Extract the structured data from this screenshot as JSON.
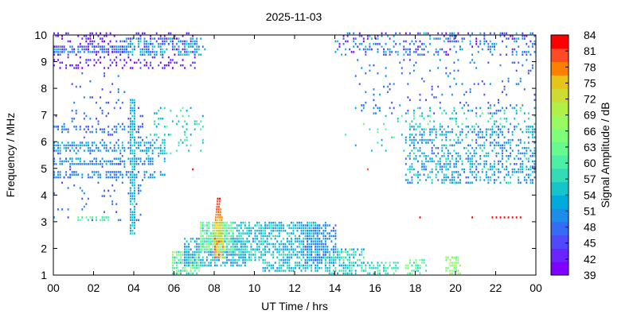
{
  "chart_data": {
    "type": "heatmap",
    "title": "2025-11-03",
    "xlabel": "UT Time / hrs",
    "ylabel": "Frequency / MHz",
    "xlim": [
      0,
      24
    ],
    "ylim": [
      1,
      10
    ],
    "x_ticks": [
      "00",
      "02",
      "04",
      "06",
      "08",
      "10",
      "12",
      "14",
      "16",
      "18",
      "20",
      "22",
      "00"
    ],
    "y_ticks": [
      "1",
      "2",
      "3",
      "4",
      "5",
      "6",
      "7",
      "8",
      "9",
      "10"
    ],
    "colorbar": {
      "label": "Signal Amplitude / dB",
      "range": [
        39,
        84
      ],
      "ticks": [
        "84",
        "81",
        "78",
        "75",
        "72",
        "69",
        "66",
        "63",
        "60",
        "57",
        "54",
        "51",
        "48",
        "45",
        "42",
        "39"
      ],
      "colors": [
        "#8000ff",
        "#6a24fe",
        "#4f49fa",
        "#366cf3",
        "#1d8de9",
        "#00abdb",
        "#16c4cb",
        "#33dbb8",
        "#4cefa4",
        "#66fb8f",
        "#80ff78",
        "#99fb61",
        "#b3ef49",
        "#cddb32",
        "#e6c41a",
        "#ff8000",
        "#ff4a26",
        "#ff0000"
      ]
    },
    "regions": [
      {
        "x": [
          0.0,
          3.7
        ],
        "y": [
          9.3,
          9.6
        ],
        "amp": [
          45,
          54
        ],
        "density": 0.7
      },
      {
        "x": [
          0.0,
          7.0
        ],
        "y": [
          8.7,
          10.0
        ],
        "amp": [
          39,
          46
        ],
        "density": 0.25
      },
      {
        "x": [
          3.4,
          7.5
        ],
        "y": [
          9.2,
          9.8
        ],
        "amp": [
          48,
          57
        ],
        "density": 0.45
      },
      {
        "x": [
          0.0,
          5.0
        ],
        "y": [
          5.6,
          5.9
        ],
        "amp": [
          48,
          55
        ],
        "density": 0.6
      },
      {
        "x": [
          0.0,
          5.0
        ],
        "y": [
          5.1,
          5.3
        ],
        "amp": [
          47,
          54
        ],
        "density": 0.6
      },
      {
        "x": [
          0.0,
          5.5
        ],
        "y": [
          4.6,
          4.8
        ],
        "amp": [
          47,
          52
        ],
        "density": 0.5
      },
      {
        "x": [
          0.0,
          4.5
        ],
        "y": [
          6.3,
          6.5
        ],
        "amp": [
          46,
          52
        ],
        "density": 0.35
      },
      {
        "x": [
          0.0,
          4.5
        ],
        "y": [
          3.0,
          8.5
        ],
        "amp": [
          45,
          50
        ],
        "density": 0.07
      },
      {
        "x": [
          3.8,
          4.1
        ],
        "y": [
          2.5,
          7.5
        ],
        "amp": [
          50,
          58
        ],
        "density": 0.85
      },
      {
        "x": [
          5.0,
          7.5
        ],
        "y": [
          5.5,
          7.2
        ],
        "amp": [
          52,
          62
        ],
        "density": 0.15
      },
      {
        "x": [
          1.2,
          2.8
        ],
        "y": [
          3.0,
          3.2
        ],
        "amp": [
          58,
          64
        ],
        "density": 0.6
      },
      {
        "x": [
          4.6,
          5.5
        ],
        "y": [
          5.2,
          6.2
        ],
        "amp": [
          50,
          58
        ],
        "density": 0.3
      },
      {
        "x": [
          5.9,
          7.2
        ],
        "y": [
          1.0,
          1.9
        ],
        "amp": [
          54,
          70
        ],
        "density": 0.75
      },
      {
        "x": [
          6.5,
          9.5
        ],
        "y": [
          1.3,
          2.4
        ],
        "amp": [
          48,
          58
        ],
        "density": 0.7
      },
      {
        "x": [
          7.3,
          8.9
        ],
        "y": [
          1.9,
          3.0
        ],
        "amp": [
          56,
          68
        ],
        "density": 0.8
      },
      {
        "x": [
          8.9,
          10.5
        ],
        "y": [
          1.5,
          3.0
        ],
        "amp": [
          50,
          60
        ],
        "density": 0.6
      },
      {
        "x": [
          10.4,
          13.5
        ],
        "y": [
          1.1,
          3.0
        ],
        "amp": [
          49,
          58
        ],
        "density": 0.65
      },
      {
        "x": [
          12.5,
          14.0
        ],
        "y": [
          1.4,
          2.9
        ],
        "amp": [
          46,
          52
        ],
        "density": 0.55
      },
      {
        "x": [
          13.5,
          15.5
        ],
        "y": [
          1.0,
          2.0
        ],
        "amp": [
          50,
          62
        ],
        "density": 0.6
      },
      {
        "x": [
          15.5,
          17.2
        ],
        "y": [
          1.0,
          1.5
        ],
        "amp": [
          54,
          62
        ],
        "density": 0.5
      },
      {
        "x": [
          17.4,
          18.6
        ],
        "y": [
          1.0,
          1.6
        ],
        "amp": [
          56,
          68
        ],
        "density": 0.5
      },
      {
        "x": [
          19.5,
          20.3
        ],
        "y": [
          1.0,
          1.7
        ],
        "amp": [
          60,
          72
        ],
        "density": 0.6
      },
      {
        "x": [
          14.0,
          24.0
        ],
        "y": [
          9.2,
          10.0
        ],
        "amp": [
          40,
          56
        ],
        "density": 0.3
      },
      {
        "x": [
          15.0,
          24.0
        ],
        "y": [
          7.0,
          9.0
        ],
        "amp": [
          44,
          52
        ],
        "density": 0.1
      },
      {
        "x": [
          17.5,
          24.0
        ],
        "y": [
          4.4,
          6.5
        ],
        "amp": [
          46,
          58
        ],
        "density": 0.4
      },
      {
        "x": [
          17.5,
          24.0
        ],
        "y": [
          6.5,
          7.2
        ],
        "amp": [
          52,
          62
        ],
        "density": 0.15
      },
      {
        "x": [
          14.5,
          19.0
        ],
        "y": [
          5.6,
          7.0
        ],
        "amp": [
          52,
          64
        ],
        "density": 0.05
      }
    ],
    "features": [
      {
        "name": "spike",
        "x": [
          7.9,
          8.5
        ],
        "y": [
          2.0,
          3.9
        ],
        "amp": [
          68,
          82
        ]
      },
      {
        "name": "hotspot",
        "x": [
          8.0,
          8.4
        ],
        "y": [
          1.6,
          2.4
        ],
        "amp": [
          70,
          80
        ]
      },
      {
        "name": "dotted-line",
        "x": [
          21.8,
          23.2
        ],
        "y": [
          3.1,
          3.15
        ],
        "amp": [
          82,
          84
        ]
      },
      {
        "name": "isolated",
        "x": [
          18.2,
          18.3
        ],
        "y": [
          3.1,
          3.2
        ],
        "amp": [
          82,
          84
        ]
      },
      {
        "name": "isolated",
        "x": [
          20.8,
          20.9
        ],
        "y": [
          3.1,
          3.2
        ],
        "amp": [
          82,
          84
        ]
      },
      {
        "name": "isolated",
        "x": [
          6.9,
          7.0
        ],
        "y": [
          4.9,
          5.0
        ],
        "amp": [
          82,
          84
        ]
      },
      {
        "name": "isolated",
        "x": [
          15.6,
          15.7
        ],
        "y": [
          4.9,
          5.0
        ],
        "amp": [
          80,
          83
        ]
      }
    ]
  }
}
